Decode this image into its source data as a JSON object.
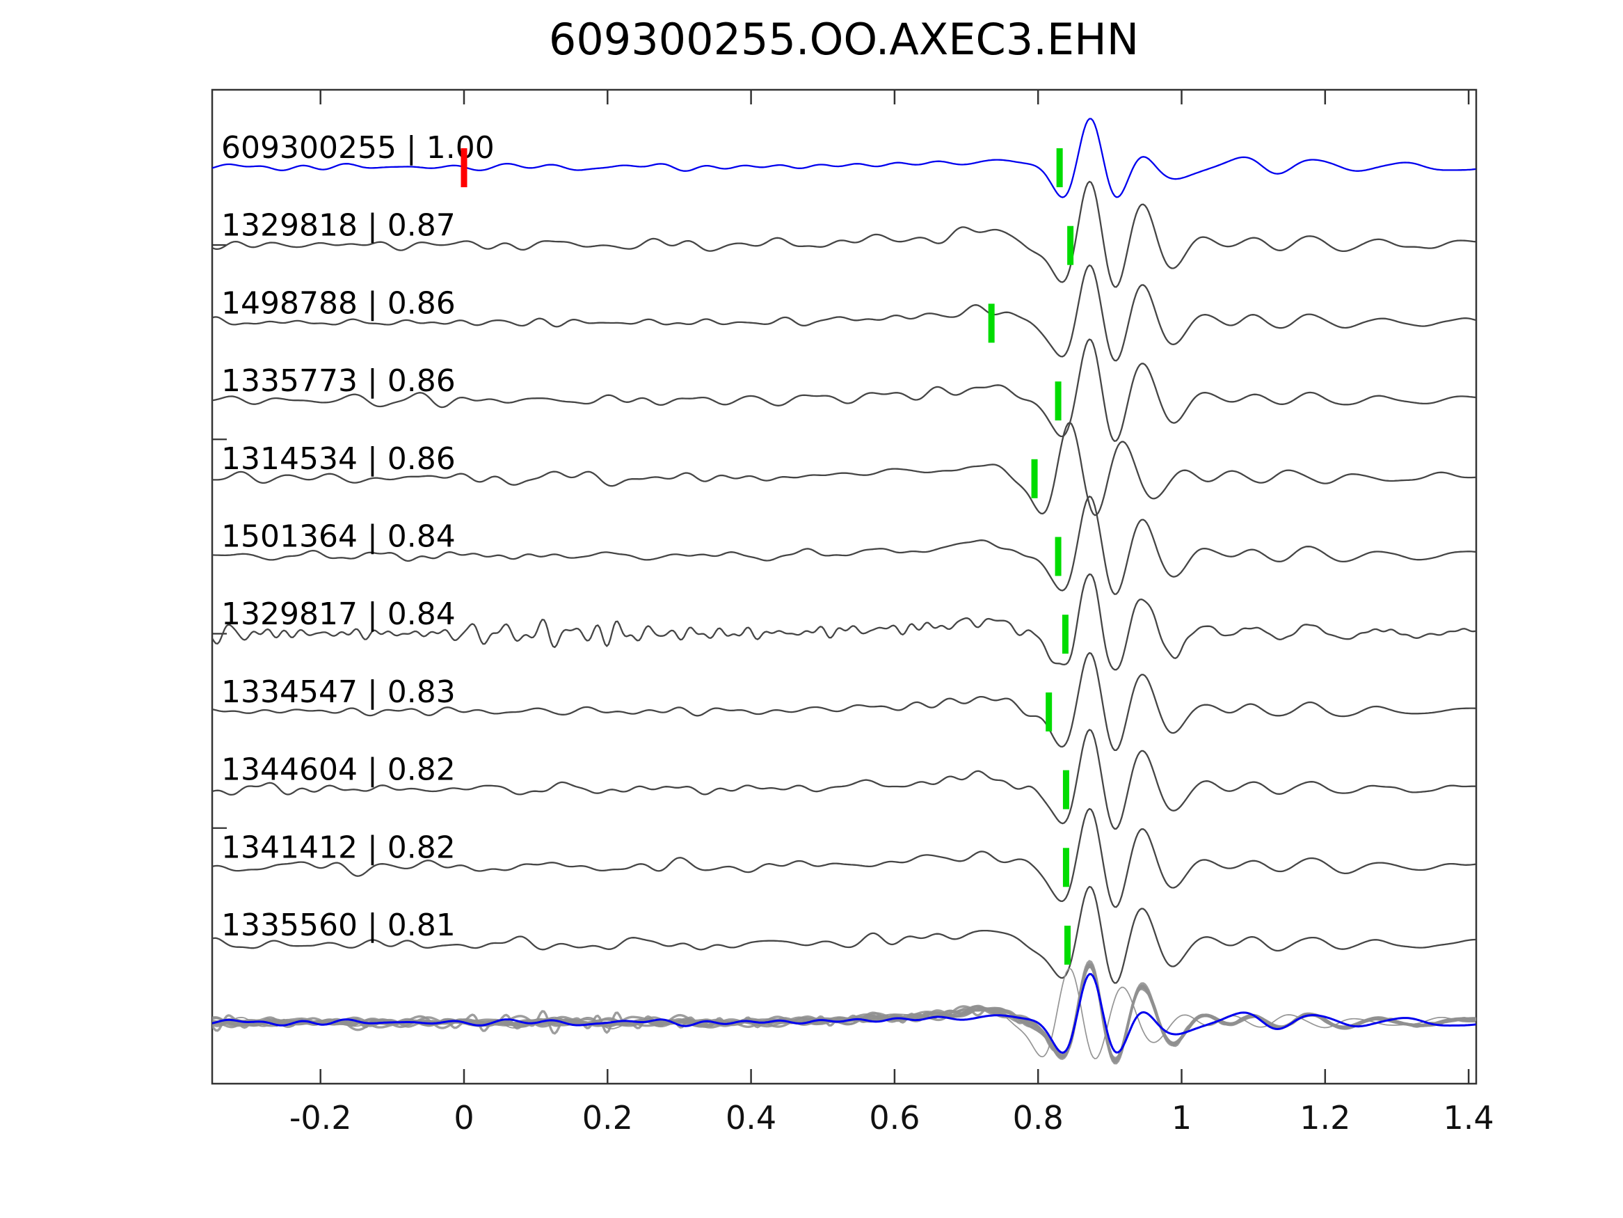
{
  "figure": {
    "title": "609300255.OO.AXEC3.EHN"
  },
  "colors": {
    "background": "#FFFFFF",
    "template_trace": "#0000EE",
    "match_trace": "#454545",
    "overlay_trace": "#8F8F8F",
    "pick_marker_green": "#00DC00",
    "template_marker_red": "#FF0000",
    "spine": "#333333",
    "text": "#000000"
  },
  "axis": {
    "x_min": -0.351,
    "x_max": 1.411,
    "tick_values": [
      -0.2,
      0,
      0.2,
      0.4,
      0.6,
      0.8,
      1,
      1.2,
      1.4
    ],
    "tick_labels": [
      "-0.2",
      "0",
      "0.2",
      "0.4",
      "0.6",
      "0.8",
      "1",
      "1.2",
      "1.4"
    ],
    "ticks_direction": "in"
  },
  "chart_data": {
    "type": "line",
    "title": "609300255.OO.AXEC3.EHN",
    "xlabel": "",
    "ylabel": "",
    "x_range": [
      -0.351,
      1.411
    ],
    "x_ticks": [
      -0.2,
      0,
      0.2,
      0.4,
      0.6,
      0.8,
      1,
      1.2,
      1.4
    ],
    "legend": "none",
    "grid": false,
    "panels": [
      "stacked waveform traces (template + 10 matches)",
      "bottom overlay of all traces superimposed"
    ],
    "traces": [
      {
        "id": "609300255",
        "label": "609300255 | 1.00",
        "correlation": 1.0,
        "role": "template",
        "pick_time": 0.83,
        "origin_marker_time": 0.0,
        "amp": 1.0,
        "shift": 0.0,
        "noise": 0.5,
        "hf": false,
        "seed": 101
      },
      {
        "id": "1329818",
        "label": "1329818 | 0.87",
        "correlation": 0.87,
        "role": "match",
        "pick_time": 0.845,
        "amp": 1.08,
        "shift": 0.0,
        "noise": 1.0,
        "hf": false,
        "seed": 202
      },
      {
        "id": "1498788",
        "label": "1498788 | 0.86",
        "correlation": 0.86,
        "role": "match",
        "pick_time": 0.735,
        "amp": 1.0,
        "shift": 0.0,
        "noise": 0.85,
        "hf": false,
        "seed": 303
      },
      {
        "id": "1335773",
        "label": "1335773 | 0.86",
        "correlation": 0.86,
        "role": "match",
        "pick_time": 0.828,
        "amp": 1.02,
        "shift": 0.0,
        "noise": 0.9,
        "hf": false,
        "seed": 404
      },
      {
        "id": "1314534",
        "label": "1314534 | 0.86",
        "correlation": 0.86,
        "role": "match",
        "pick_time": 0.795,
        "amp": 0.98,
        "shift": -0.028,
        "noise": 1.0,
        "hf": false,
        "seed": 505
      },
      {
        "id": "1501364",
        "label": "1501364 | 0.84",
        "correlation": 0.84,
        "role": "match",
        "pick_time": 0.828,
        "amp": 1.0,
        "shift": 0.0,
        "noise": 0.9,
        "hf": false,
        "seed": 606
      },
      {
        "id": "1329817",
        "label": "1329817 | 0.84",
        "correlation": 0.84,
        "role": "match",
        "pick_time": 0.838,
        "amp": 1.0,
        "shift": 0.0,
        "noise": 2.0,
        "hf": true,
        "seed": 707
      },
      {
        "id": "1334547",
        "label": "1334547 | 0.83",
        "correlation": 0.83,
        "role": "match",
        "pick_time": 0.815,
        "amp": 1.0,
        "shift": 0.0,
        "noise": 0.95,
        "hf": false,
        "seed": 808
      },
      {
        "id": "1344604",
        "label": "1344604 | 0.82",
        "correlation": 0.82,
        "role": "match",
        "pick_time": 0.839,
        "amp": 1.02,
        "shift": 0.0,
        "noise": 0.9,
        "hf": false,
        "seed": 909
      },
      {
        "id": "1341412",
        "label": "1341412 | 0.82",
        "correlation": 0.82,
        "role": "match",
        "pick_time": 0.839,
        "amp": 1.0,
        "shift": 0.0,
        "noise": 0.95,
        "hf": false,
        "seed": 1010
      },
      {
        "id": "1335560",
        "label": "1335560 | 0.81",
        "correlation": 0.81,
        "role": "match",
        "pick_time": 0.841,
        "amp": 1.0,
        "shift": 0.0,
        "noise": 0.9,
        "hf": false,
        "seed": 1111
      }
    ],
    "overlay": {
      "includes_trace_ids": [
        "1329818",
        "1498788",
        "1335773",
        "1314534",
        "1501364",
        "1329817",
        "1334547",
        "1344604",
        "1341412",
        "1335560",
        "609300255"
      ],
      "outlier_id": "1314534",
      "template_on_top": true
    }
  }
}
